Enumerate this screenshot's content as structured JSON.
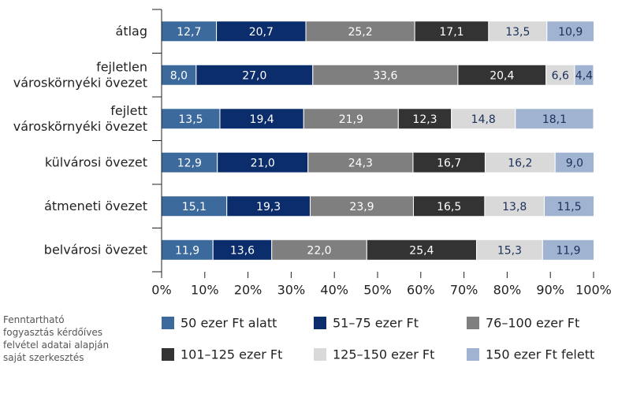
{
  "chart_data": {
    "type": "stacked_bar_horizontal",
    "categories": [
      "átlag",
      "fejletlen\nvároskörnyéki övezet",
      "fejlett\nvároskörnyéki övezet",
      "külvárosi övezet",
      "átmeneti övezet",
      "belvárosi övezet"
    ],
    "series": [
      {
        "name": "50 ezer Ft alatt",
        "color": "#3d6a9c",
        "values": [
          12.7,
          8.0,
          13.5,
          12.9,
          15.1,
          11.9
        ],
        "value_labels": [
          "12,7",
          "8,0",
          "13,5",
          "12,9",
          "15,1",
          "11,9"
        ]
      },
      {
        "name": "51–75 ezer Ft",
        "color": "#0b2d6b",
        "values": [
          20.7,
          27.0,
          19.4,
          21.0,
          19.3,
          13.6
        ],
        "value_labels": [
          "20,7",
          "27,0",
          "19,4",
          "21,0",
          "19,3",
          "13,6"
        ]
      },
      {
        "name": "76–100 ezer Ft",
        "color": "#7f7f7f",
        "values": [
          25.2,
          33.6,
          21.9,
          24.3,
          23.9,
          22.0
        ],
        "value_labels": [
          "25,2",
          "33,6",
          "21,9",
          "24,3",
          "23,9",
          "22,0"
        ]
      },
      {
        "name": "101–125 ezer Ft",
        "color": "#333333",
        "values": [
          17.1,
          20.4,
          12.3,
          16.7,
          16.5,
          25.4
        ],
        "value_labels": [
          "17,1",
          "20,4",
          "12,3",
          "16,7",
          "16,5",
          "25,4"
        ]
      },
      {
        "name": "125–150 ezer Ft",
        "color": "#d9d9d9",
        "values": [
          13.5,
          6.6,
          14.8,
          16.2,
          13.8,
          15.3
        ],
        "value_labels": [
          "13,5",
          "6,6",
          "14,8",
          "16,2",
          "13,8",
          "15,3"
        ]
      },
      {
        "name": "150 ezer Ft felett",
        "color": "#a0b4d2",
        "values": [
          10.9,
          4.4,
          18.1,
          9.0,
          11.5,
          11.9
        ],
        "value_labels": [
          "10,9",
          "4,4",
          "18,1",
          "9,0",
          "11,5",
          "11,9"
        ]
      }
    ],
    "xlim": [
      0,
      100
    ],
    "xticks": [
      {
        "value": 0,
        "label": "0%"
      },
      {
        "value": 10,
        "label": "10%"
      },
      {
        "value": 20,
        "label": "20%"
      },
      {
        "value": 30,
        "label": "30%"
      },
      {
        "value": 40,
        "label": "40%"
      },
      {
        "value": 50,
        "label": "50%"
      },
      {
        "value": 60,
        "label": "60%"
      },
      {
        "value": 70,
        "label": "70%"
      },
      {
        "value": 80,
        "label": "80%"
      },
      {
        "value": 90,
        "label": "90%"
      },
      {
        "value": 100,
        "label": "100%"
      }
    ],
    "source": "Fenntartható\nfogyasztás kérdőíves\nfelvétel adatai alapján\nsaját szerkesztés"
  }
}
